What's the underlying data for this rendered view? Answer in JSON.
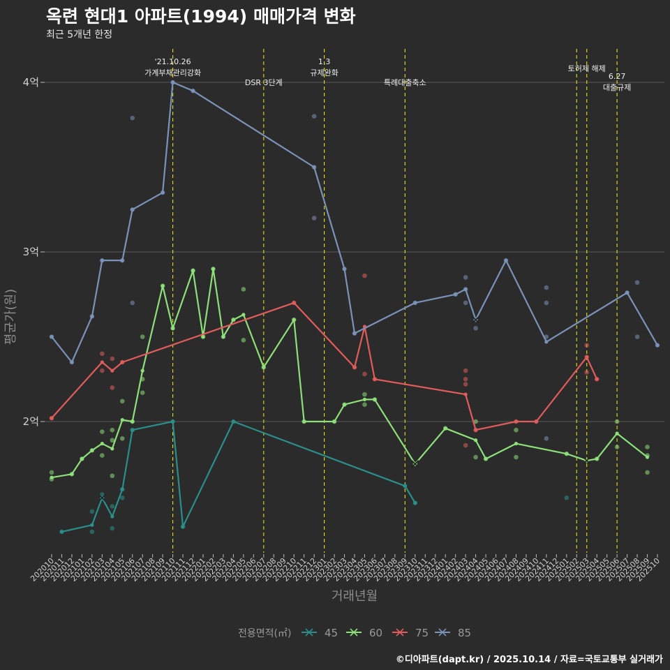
{
  "title": "옥련 현대1 아파트(1994) 매매가격 변화",
  "subtitle": "최근 5개년 한정",
  "caption": "©디아파트(dapt.kr) / 2025.10.14 / 자료=국토교통부 실거래가",
  "chart_data": {
    "type": "line",
    "xlabel": "거래년월",
    "ylabel": "평균가(원)",
    "ylim": [
      1.25,
      4.2
    ],
    "yticks": [
      {
        "v": 2,
        "label": "2억"
      },
      {
        "v": 3,
        "label": "3억"
      },
      {
        "v": 4,
        "label": "4억"
      }
    ],
    "grid": true,
    "legend_position": "bottom",
    "legend_title": "전용면적(㎡)",
    "x": [
      "202010",
      "202011",
      "202012",
      "202101",
      "202102",
      "202103",
      "202104",
      "202105",
      "202106",
      "202107",
      "202108",
      "202109",
      "202110",
      "202111",
      "202112",
      "202201",
      "202202",
      "202203",
      "202204",
      "202205",
      "202206",
      "202207",
      "202208",
      "202209",
      "202210",
      "202211",
      "202212",
      "202301",
      "202302",
      "202303",
      "202304",
      "202305",
      "202306",
      "202307",
      "202308",
      "202309",
      "202310",
      "202311",
      "202312",
      "202401",
      "202402",
      "202403",
      "202404",
      "202405",
      "202406",
      "202407",
      "202408",
      "202409",
      "202410",
      "202411",
      "202412",
      "202501",
      "202502",
      "202503",
      "202504",
      "202505",
      "202506",
      "202507",
      "202508",
      "202509",
      "202510"
    ],
    "events": [
      {
        "x": "202110",
        "lines": [
          "'21.10.26",
          "가계부채관리강화"
        ],
        "row": 0
      },
      {
        "x": "202207",
        "lines": [
          "DSR 3단계"
        ],
        "row": 1
      },
      {
        "x": "202301",
        "lines": [
          "1.3",
          "규제완화"
        ],
        "row": 0
      },
      {
        "x": "202309",
        "lines": [
          "특례대출축소"
        ],
        "row": 1
      },
      {
        "x": "202502",
        "lines": [],
        "row": 0
      },
      {
        "x": "202503",
        "lines": [
          "토허제 해제"
        ],
        "row": 0
      },
      {
        "x": "202506",
        "lines": [
          "6.27",
          "대출규제"
        ],
        "row": 2
      }
    ],
    "series": [
      {
        "name": "45",
        "color": "#2a8f8a",
        "line": [
          [
            "202011",
            1.35
          ],
          [
            "202102",
            1.39
          ],
          [
            "202103",
            1.55
          ],
          [
            "202104",
            1.44
          ],
          [
            "202105",
            1.6
          ],
          [
            "202106",
            1.95
          ],
          [
            "202110",
            2.0
          ],
          [
            "202111",
            1.38
          ],
          [
            "202204",
            2.0
          ],
          [
            "202309",
            1.62
          ],
          [
            "202310",
            1.52
          ]
        ],
        "points": [
          [
            "202011",
            1.35
          ],
          [
            "202102",
            1.35
          ],
          [
            "202102",
            1.47
          ],
          [
            "202103",
            1.57
          ],
          [
            "202103",
            1.55
          ],
          [
            "202104",
            1.5
          ],
          [
            "202104",
            1.37
          ],
          [
            "202105",
            1.6
          ],
          [
            "202105",
            1.55
          ],
          [
            "202106",
            1.95
          ],
          [
            "202110",
            2.0
          ],
          [
            "202111",
            1.38
          ],
          [
            "202204",
            2.0
          ],
          [
            "202309",
            1.62
          ],
          [
            "202310",
            1.52
          ],
          [
            "202501",
            1.55
          ]
        ],
        "markers": [
          [
            "202103",
            1.55
          ]
        ]
      },
      {
        "name": "60",
        "color": "#8ee07a",
        "line": [
          [
            "202010",
            1.67
          ],
          [
            "202012",
            1.69
          ],
          [
            "202101",
            1.78
          ],
          [
            "202102",
            1.83
          ],
          [
            "202103",
            1.87
          ],
          [
            "202104",
            1.84
          ],
          [
            "202105",
            2.01
          ],
          [
            "202106",
            2.0
          ],
          [
            "202107",
            2.3
          ],
          [
            "202109",
            2.8
          ],
          [
            "202110",
            2.55
          ],
          [
            "202112",
            2.89
          ],
          [
            "202201",
            2.5
          ],
          [
            "202202",
            2.9
          ],
          [
            "202203",
            2.5
          ],
          [
            "202204",
            2.6
          ],
          [
            "202205",
            2.63
          ],
          [
            "202207",
            2.32
          ],
          [
            "202210",
            2.6
          ],
          [
            "202211",
            2.0
          ],
          [
            "202302",
            2.0
          ],
          [
            "202303",
            2.1
          ],
          [
            "202305",
            2.13
          ],
          [
            "202306",
            2.13
          ],
          [
            "202310",
            1.75
          ],
          [
            "202401",
            1.96
          ],
          [
            "202404",
            1.89
          ],
          [
            "202405",
            1.78
          ],
          [
            "202408",
            1.87
          ],
          [
            "202501",
            1.81
          ],
          [
            "202503",
            1.77
          ],
          [
            "202504",
            1.78
          ],
          [
            "202506",
            1.93
          ],
          [
            "202509",
            1.79
          ]
        ],
        "points": [
          [
            "202010",
            1.7
          ],
          [
            "202010",
            1.66
          ],
          [
            "202012",
            1.69
          ],
          [
            "202101",
            1.78
          ],
          [
            "202102",
            1.83
          ],
          [
            "202103",
            1.94
          ],
          [
            "202103",
            1.8
          ],
          [
            "202104",
            1.95
          ],
          [
            "202104",
            1.89
          ],
          [
            "202104",
            1.68
          ],
          [
            "202105",
            2.12
          ],
          [
            "202105",
            1.9
          ],
          [
            "202106",
            2.0
          ],
          [
            "202107",
            2.5
          ],
          [
            "202107",
            2.25
          ],
          [
            "202107",
            2.17
          ],
          [
            "202109",
            2.8
          ],
          [
            "202110",
            2.55
          ],
          [
            "202112",
            2.89
          ],
          [
            "202201",
            2.5
          ],
          [
            "202202",
            2.9
          ],
          [
            "202203",
            2.5
          ],
          [
            "202204",
            2.6
          ],
          [
            "202205",
            2.78
          ],
          [
            "202205",
            2.48
          ],
          [
            "202207",
            2.32
          ],
          [
            "202210",
            2.6
          ],
          [
            "202211",
            2.0
          ],
          [
            "202302",
            2.0
          ],
          [
            "202303",
            2.1
          ],
          [
            "202305",
            2.16
          ],
          [
            "202305",
            2.1
          ],
          [
            "202306",
            2.13
          ],
          [
            "202310",
            1.75
          ],
          [
            "202401",
            1.96
          ],
          [
            "202404",
            2.0
          ],
          [
            "202404",
            1.79
          ],
          [
            "202405",
            1.78
          ],
          [
            "202408",
            1.95
          ],
          [
            "202408",
            1.79
          ],
          [
            "202501",
            1.81
          ],
          [
            "202503",
            1.77
          ],
          [
            "202504",
            1.78
          ],
          [
            "202506",
            2.0
          ],
          [
            "202506",
            1.85
          ],
          [
            "202509",
            1.85
          ],
          [
            "202509",
            1.8
          ],
          [
            "202509",
            1.7
          ]
        ],
        "markers": [
          [
            "202310",
            1.75
          ],
          [
            "202503",
            1.77
          ]
        ]
      },
      {
        "name": "75",
        "color": "#e35c5c",
        "line": [
          [
            "202010",
            2.02
          ],
          [
            "202103",
            2.35
          ],
          [
            "202104",
            2.3
          ],
          [
            "202105",
            2.35
          ],
          [
            "202210",
            2.7
          ],
          [
            "202304",
            2.32
          ],
          [
            "202305",
            2.56
          ],
          [
            "202306",
            2.25
          ],
          [
            "202403",
            2.16
          ],
          [
            "202404",
            1.95
          ],
          [
            "202408",
            2.0
          ],
          [
            "202410",
            2.0
          ],
          [
            "202503",
            2.38
          ],
          [
            "202504",
            2.25
          ]
        ],
        "points": [
          [
            "202010",
            2.02
          ],
          [
            "202103",
            2.4
          ],
          [
            "202103",
            2.3
          ],
          [
            "202104",
            2.37
          ],
          [
            "202104",
            2.2
          ],
          [
            "202105",
            2.35
          ],
          [
            "202210",
            2.7
          ],
          [
            "202304",
            2.32
          ],
          [
            "202305",
            2.86
          ],
          [
            "202305",
            2.28
          ],
          [
            "202306",
            2.25
          ],
          [
            "202403",
            2.3
          ],
          [
            "202403",
            2.25
          ],
          [
            "202403",
            2.22
          ],
          [
            "202403",
            1.86
          ],
          [
            "202404",
            1.95
          ],
          [
            "202408",
            2.0
          ],
          [
            "202410",
            2.0
          ],
          [
            "202503",
            2.45
          ],
          [
            "202503",
            2.38
          ],
          [
            "202503",
            2.29
          ],
          [
            "202504",
            2.25
          ]
        ],
        "markers": []
      },
      {
        "name": "85",
        "color": "#7b93b8",
        "line": [
          [
            "202010",
            2.5
          ],
          [
            "202012",
            2.35
          ],
          [
            "202102",
            2.62
          ],
          [
            "202103",
            2.95
          ],
          [
            "202105",
            2.95
          ],
          [
            "202106",
            3.25
          ],
          [
            "202109",
            3.35
          ],
          [
            "202110",
            4.0
          ],
          [
            "202112",
            3.95
          ],
          [
            "202212",
            3.5
          ],
          [
            "202303",
            2.9
          ],
          [
            "202304",
            2.52
          ],
          [
            "202310",
            2.7
          ],
          [
            "202402",
            2.75
          ],
          [
            "202403",
            2.78
          ],
          [
            "202404",
            2.6
          ],
          [
            "202407",
            2.95
          ],
          [
            "202411",
            2.47
          ],
          [
            "202507",
            2.76
          ],
          [
            "202510",
            2.45
          ]
        ],
        "points": [
          [
            "202010",
            2.5
          ],
          [
            "202012",
            2.35
          ],
          [
            "202102",
            2.62
          ],
          [
            "202103",
            2.95
          ],
          [
            "202105",
            2.95
          ],
          [
            "202106",
            3.25
          ],
          [
            "202106",
            3.79
          ],
          [
            "202106",
            2.7
          ],
          [
            "202109",
            3.35
          ],
          [
            "202110",
            4.0
          ],
          [
            "202112",
            3.95
          ],
          [
            "202212",
            3.8
          ],
          [
            "202212",
            3.5
          ],
          [
            "202212",
            3.2
          ],
          [
            "202303",
            2.9
          ],
          [
            "202304",
            2.52
          ],
          [
            "202310",
            2.7
          ],
          [
            "202402",
            2.75
          ],
          [
            "202403",
            2.85
          ],
          [
            "202403",
            2.78
          ],
          [
            "202403",
            2.7
          ],
          [
            "202404",
            2.6
          ],
          [
            "202404",
            2.55
          ],
          [
            "202407",
            2.95
          ],
          [
            "202411",
            2.79
          ],
          [
            "202411",
            2.7
          ],
          [
            "202411",
            2.5
          ],
          [
            "202411",
            1.9
          ],
          [
            "202507",
            2.76
          ],
          [
            "202508",
            2.82
          ],
          [
            "202508",
            2.5
          ],
          [
            "202510",
            2.45
          ]
        ],
        "markers": [
          [
            "202404",
            2.6
          ]
        ]
      }
    ]
  }
}
